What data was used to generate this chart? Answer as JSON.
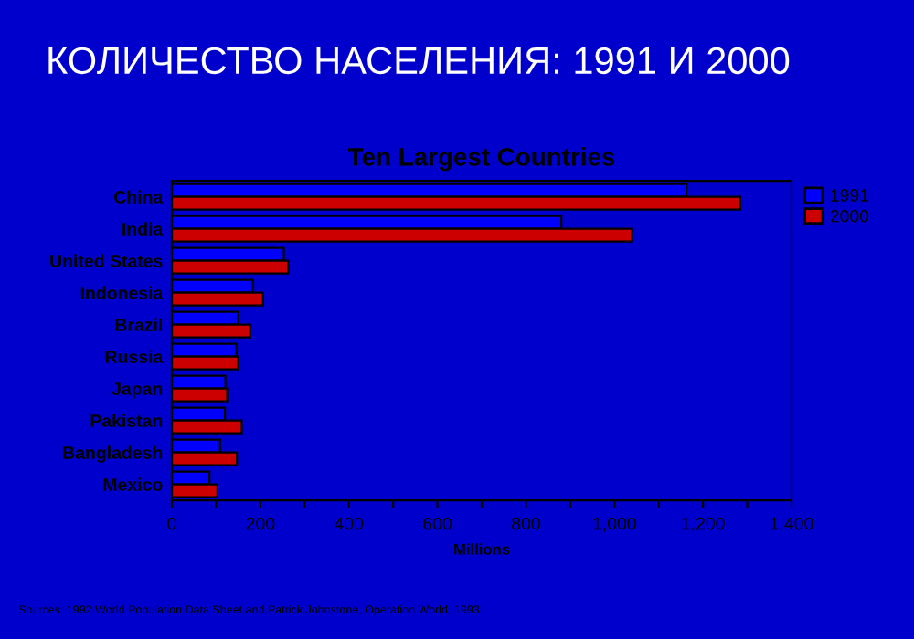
{
  "chart_data": {
    "type": "bar",
    "orientation": "horizontal",
    "title": "КОЛИЧЕСТВО НАСЕЛЕНИЯ: 1991 И 2000",
    "subtitle": "Ten Largest Countries",
    "xlabel": "Millions",
    "categories": [
      "China",
      "India",
      "United States",
      "Indonesia",
      "Brazil",
      "Russia",
      "Japan",
      "Pakistan",
      "Bangladesh",
      "Mexico"
    ],
    "series": [
      {
        "name": "1991",
        "color": "#0000ff",
        "values": [
          1163,
          880,
          253,
          183,
          150,
          146,
          121,
          120,
          109,
          85
        ]
      },
      {
        "name": "2000",
        "color": "#cc0000",
        "values": [
          1284,
          1040,
          263,
          206,
          177,
          150,
          125,
          158,
          147,
          103
        ]
      }
    ],
    "xlim": [
      0,
      1400
    ],
    "xticks": [
      0,
      {
        "value": 100,
        "label": null
      },
      200,
      {
        "value": 300,
        "label": null
      },
      400,
      {
        "value": 500,
        "label": null
      },
      600,
      {
        "value": 700,
        "label": null
      },
      800,
      {
        "value": 900,
        "label": null
      },
      {
        "value": 1000,
        "label": "1,000"
      },
      {
        "value": 1100,
        "label": null
      },
      {
        "value": 1200,
        "label": "1,200"
      },
      {
        "value": 1300,
        "label": null
      },
      {
        "value": 1400,
        "label": "1,400"
      }
    ],
    "grid": false,
    "legend": "top right",
    "annotations": [
      "Sources: 1992 World Population Data Sheet and Patrick Johnstone, Operation World, 1993"
    ]
  }
}
